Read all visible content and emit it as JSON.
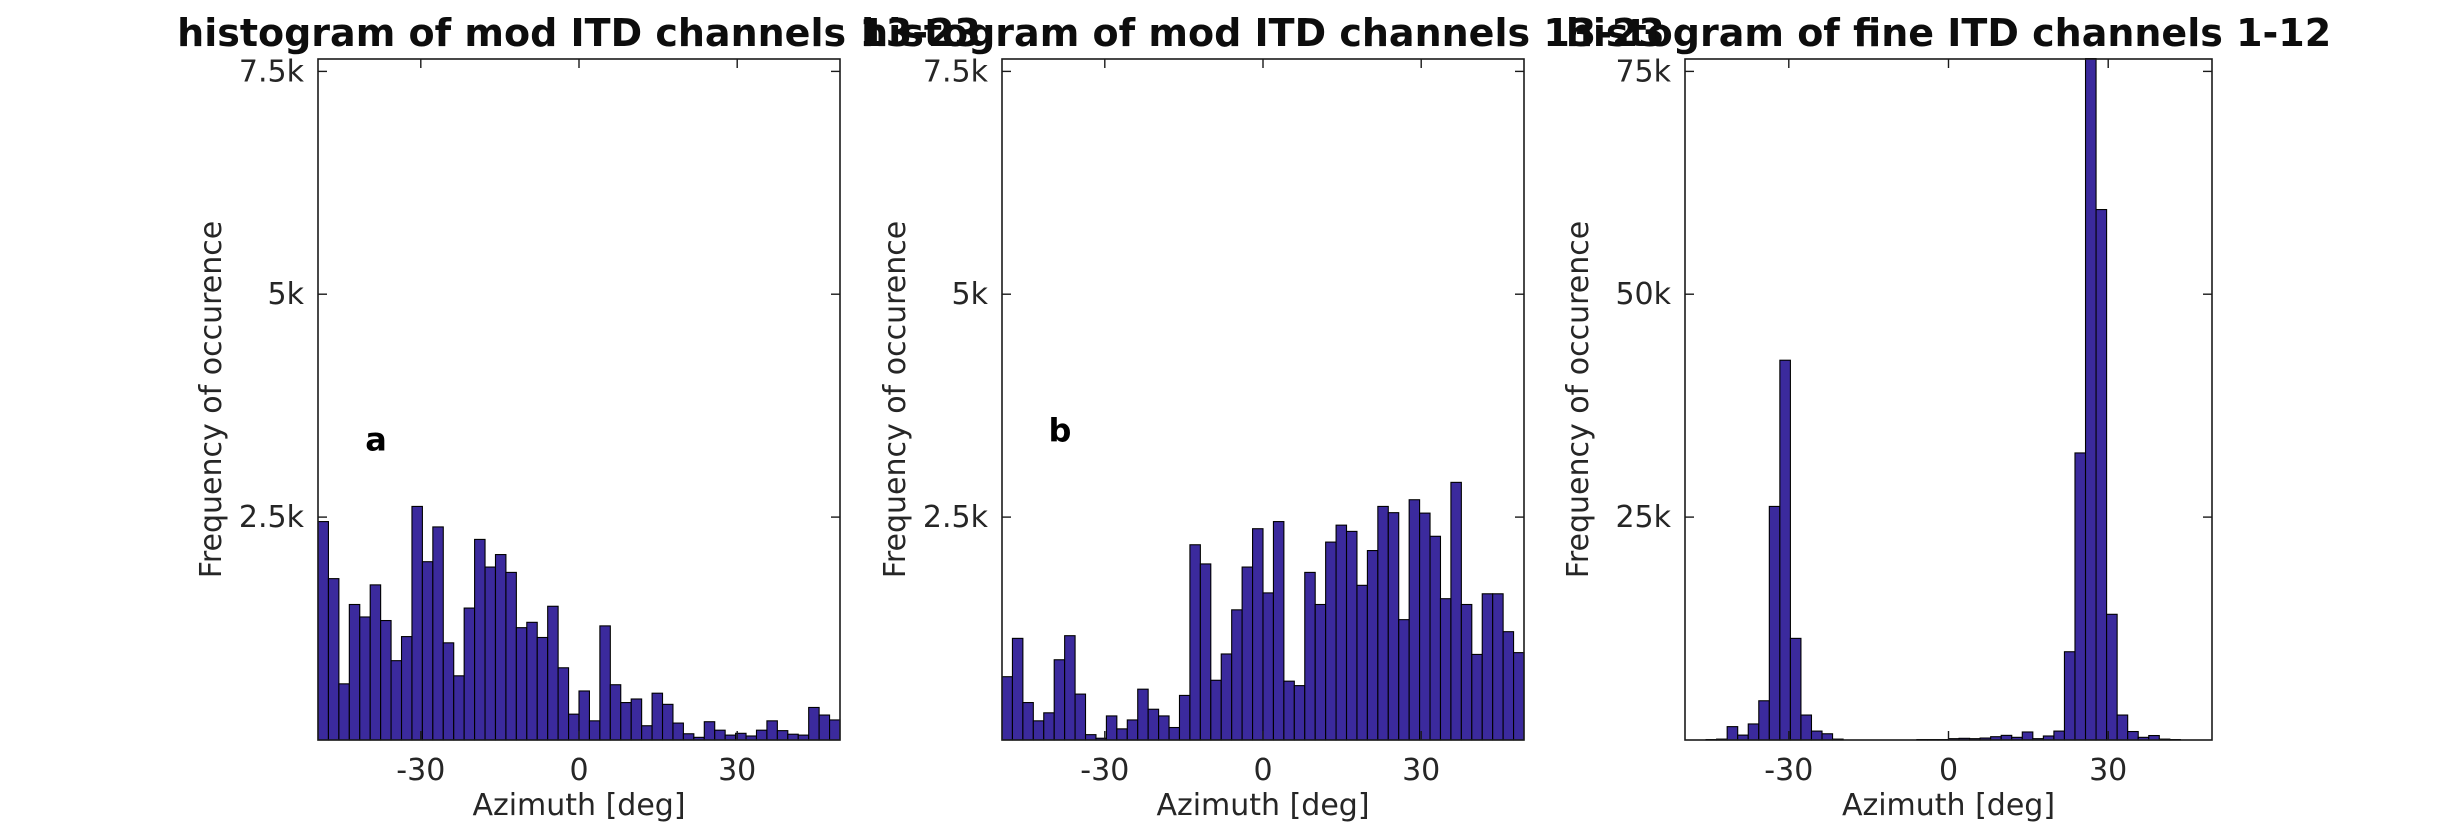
{
  "figure": {
    "background": "#ffffff",
    "bar_fill": "#3b2a9d",
    "bar_edge": "#000000",
    "axis_color": "#1a1a1a",
    "tick_text_color": "#262626",
    "title_color": "#0d0d0d"
  },
  "chart_data": [
    {
      "type": "bar",
      "title": "histogram of mod ITD channels 13-23",
      "xlabel": "Azimuth [deg]",
      "ylabel": "Frequency of occurence",
      "annotation": {
        "text": "a",
        "x_deg": -38.5,
        "y_value": 3250
      },
      "xlim": [
        -49.5,
        49.5
      ],
      "ylim": [
        0,
        7650
      ],
      "grid": false,
      "legend": null,
      "xticks": [
        {
          "value": -30,
          "label": "-30"
        },
        {
          "value": 0,
          "label": "0"
        },
        {
          "value": 30,
          "label": "30"
        }
      ],
      "yticks": [
        {
          "value": 2500,
          "label": "2.5k"
        },
        {
          "value": 5000,
          "label": "5k"
        },
        {
          "value": 7500,
          "label": "7.5k"
        }
      ],
      "bin_width_deg": 1.98,
      "values": [
        2450,
        1810,
        630,
        1520,
        1380,
        1740,
        1340,
        890,
        1160,
        2620,
        2000,
        2390,
        1090,
        720,
        1480,
        2250,
        1940,
        2080,
        1880,
        1260,
        1320,
        1150,
        1500,
        810,
        290,
        550,
        215,
        1280,
        620,
        420,
        460,
        160,
        525,
        400,
        190,
        70,
        30,
        205,
        110,
        55,
        75,
        45,
        110,
        215,
        105,
        65,
        55,
        365,
        280,
        225
      ]
    },
    {
      "type": "bar",
      "title": "histogram of mod ITD channels 13-23",
      "xlabel": "Azimuth [deg]",
      "ylabel": "Frequency of occurence",
      "annotation": {
        "text": "b",
        "x_deg": -38.5,
        "y_value": 3350
      },
      "xlim": [
        -49.5,
        49.5
      ],
      "ylim": [
        0,
        7650
      ],
      "grid": false,
      "legend": null,
      "xticks": [
        {
          "value": -30,
          "label": "-30"
        },
        {
          "value": 0,
          "label": "0"
        },
        {
          "value": 30,
          "label": "30"
        }
      ],
      "yticks": [
        {
          "value": 2500,
          "label": "2.5k"
        },
        {
          "value": 5000,
          "label": "5k"
        },
        {
          "value": 7500,
          "label": "7.5k"
        }
      ],
      "bin_width_deg": 1.98,
      "values": [
        710,
        1140,
        420,
        215,
        305,
        900,
        1170,
        515,
        60,
        20,
        270,
        125,
        225,
        570,
        345,
        270,
        140,
        500,
        2190,
        1975,
        670,
        965,
        1460,
        1940,
        2370,
        1650,
        2450,
        660,
        610,
        1880,
        1520,
        2220,
        2410,
        2340,
        1735,
        2125,
        2620,
        2550,
        1350,
        2695,
        2545,
        2285,
        1585,
        2890,
        1520,
        960,
        1640,
        1640,
        1215,
        980
      ]
    },
    {
      "type": "bar",
      "title": "histogram of fine ITD channels 1-12",
      "xlabel": "Azimuth [deg]",
      "ylabel": "Frequency of occurence",
      "annotation": null,
      "xlim": [
        -49.5,
        49.5
      ],
      "ylim": [
        0,
        76500
      ],
      "grid": false,
      "legend": null,
      "xticks": [
        {
          "value": -30,
          "label": "-30"
        },
        {
          "value": 0,
          "label": "0"
        },
        {
          "value": 30,
          "label": "30"
        }
      ],
      "yticks": [
        {
          "value": 25000,
          "label": "25k"
        },
        {
          "value": 50000,
          "label": "50k"
        },
        {
          "value": 75000,
          "label": "75k"
        }
      ],
      "bin_width_deg": 1.98,
      "values": [
        0,
        0,
        50,
        100,
        1500,
        550,
        1800,
        4400,
        26200,
        42600,
        11400,
        2800,
        1000,
        700,
        100,
        0,
        0,
        0,
        0,
        0,
        0,
        0,
        50,
        50,
        50,
        150,
        190,
        150,
        220,
        370,
        520,
        300,
        900,
        150,
        450,
        1000,
        9900,
        32200,
        76500,
        59500,
        14100,
        2800,
        950,
        300,
        500,
        100,
        50,
        0,
        0,
        0
      ]
    }
  ]
}
